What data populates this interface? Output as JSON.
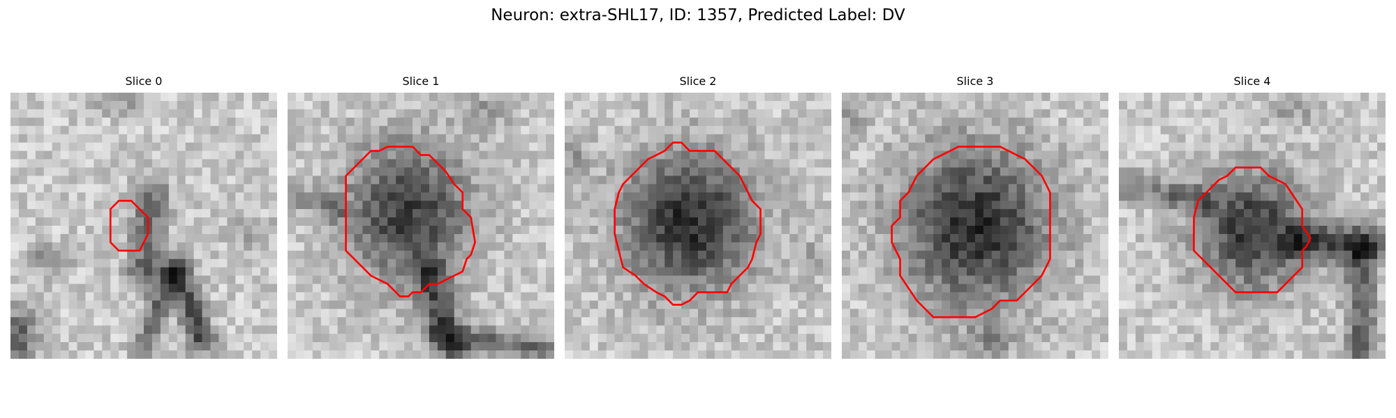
{
  "figure": {
    "title": "Neuron: extra-SHL17, ID: 1357, Predicted Label: DV"
  },
  "panels": [
    {
      "title": "Slice 0",
      "contour_color": "#ff0000"
    },
    {
      "title": "Slice 1",
      "contour_color": "#ff0000"
    },
    {
      "title": "Slice 2",
      "contour_color": "#ff0000"
    },
    {
      "title": "Slice 3",
      "contour_color": "#ff0000"
    },
    {
      "title": "Slice 4",
      "contour_color": "#ff0000"
    }
  ]
}
